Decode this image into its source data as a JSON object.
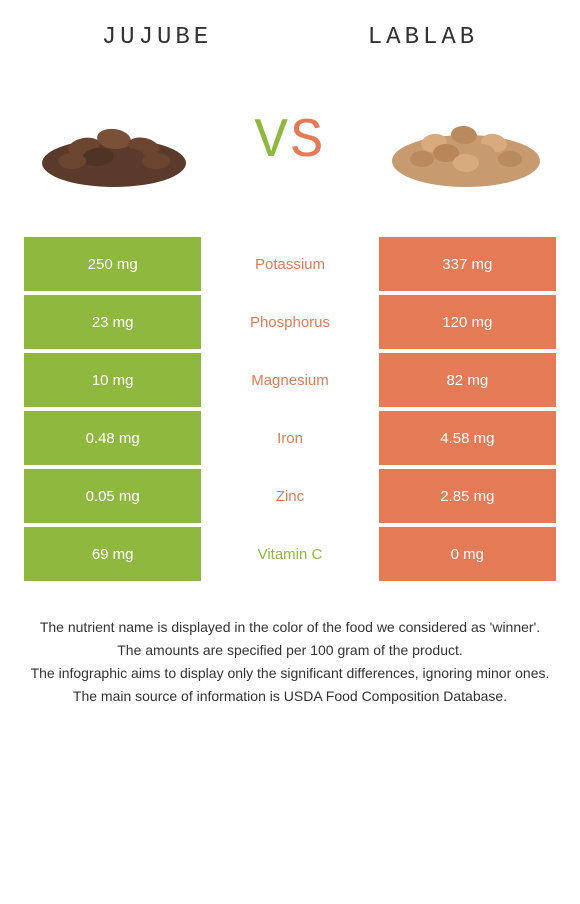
{
  "header": {
    "left_title": "JUJUBE",
    "right_title": "LABLAB"
  },
  "vs": {
    "v": "V",
    "s": "S"
  },
  "colors": {
    "left": "#8fb93e",
    "right": "#e57a56",
    "background": "#ffffff",
    "text": "#333333"
  },
  "images": {
    "left_alt": "jujube-pile",
    "right_alt": "lablab-pile"
  },
  "rows": [
    {
      "left": "250 mg",
      "label": "Potassium",
      "right": "337 mg",
      "label_color": "#e57a56"
    },
    {
      "left": "23 mg",
      "label": "Phosphorus",
      "right": "120 mg",
      "label_color": "#e57a56"
    },
    {
      "left": "10 mg",
      "label": "Magnesium",
      "right": "82 mg",
      "label_color": "#e57a56"
    },
    {
      "left": "0.48 mg",
      "label": "Iron",
      "right": "4.58 mg",
      "label_color": "#e57a56"
    },
    {
      "left": "0.05 mg",
      "label": "Zinc",
      "right": "2.85 mg",
      "label_color": "#e57a56"
    },
    {
      "left": "69 mg",
      "label": "Vitamin C",
      "right": "0 mg",
      "label_color": "#8fb93e"
    }
  ],
  "footnotes": [
    "The nutrient name is displayed in the color of the food we considered as 'winner'.",
    "The amounts are specified per 100 gram of the product.",
    "The infographic aims to display only the significant differences, ignoring minor ones.",
    "The main source of information is USDA Food Composition Database."
  ]
}
